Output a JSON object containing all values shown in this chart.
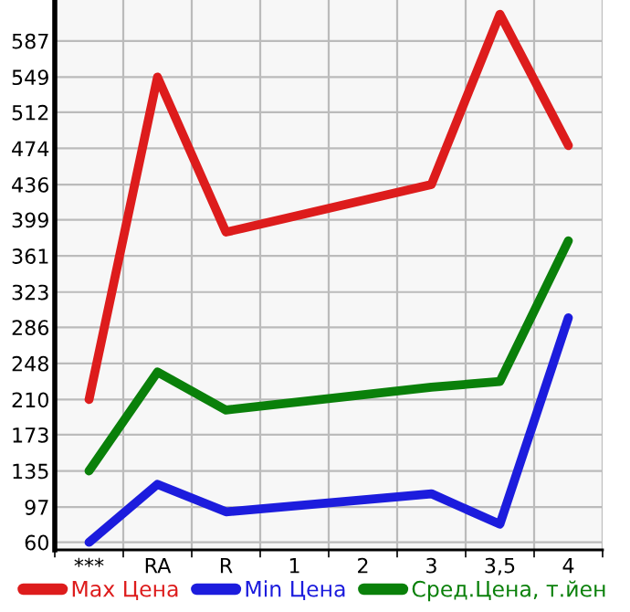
{
  "chart_data": {
    "type": "line",
    "categories": [
      "***",
      "RA",
      "R",
      "1",
      "2",
      "3",
      "3,5",
      "4"
    ],
    "series": [
      {
        "name": "Max Цена",
        "color": "#dd1c1c",
        "values": [
          210,
          549,
          386,
          null,
          null,
          436,
          615,
          477
        ]
      },
      {
        "name": "Min Цена",
        "color": "#1c1cdd",
        "values": [
          60,
          121,
          92,
          null,
          null,
          111,
          79,
          296
        ]
      },
      {
        "name": "Сред.Цена, т.йен",
        "color": "#0a800a",
        "values": [
          135,
          239,
          199,
          null,
          null,
          223,
          229,
          377
        ]
      }
    ],
    "ylim": [
      52,
      630
    ],
    "yticks": [
      60,
      97,
      135,
      173,
      210,
      248,
      286,
      323,
      361,
      399,
      436,
      474,
      512,
      549,
      587
    ],
    "grid": true,
    "legend": "bottom",
    "marker": "none",
    "line_style": "solid"
  }
}
